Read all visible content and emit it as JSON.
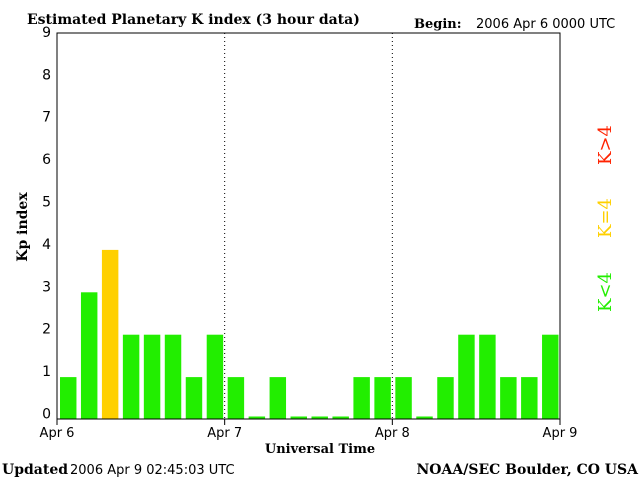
{
  "header": {
    "title": "Estimated Planetary K index (3 hour data)",
    "begin_label": "Begin:",
    "begin_value": "2006 Apr 6 0000 UTC"
  },
  "footer": {
    "updated_label": "Updated",
    "updated_value": "2006 Apr  9 02:45:03 UTC",
    "source": "NOAA/SEC Boulder, CO USA"
  },
  "legend": {
    "high": "K>4",
    "mid": "K=4",
    "low": "K<4"
  },
  "colors": {
    "low": "#22ee00",
    "mid": "#ffd000",
    "high": "#ff2200"
  },
  "chart_data": {
    "type": "bar",
    "title": "Estimated Planetary K index (3 hour data)",
    "xlabel": "Universal Time",
    "ylabel": "Kp index",
    "ylim": [
      0,
      9
    ],
    "yticks": [
      "0",
      "1",
      "2",
      "3",
      "4",
      "5",
      "6",
      "7",
      "8",
      "9"
    ],
    "xticks": [
      "Apr 6",
      "Apr 7",
      "Apr 8",
      "Apr 9"
    ],
    "interval_hours": 3,
    "values": [
      1,
      3,
      4,
      2,
      2,
      2,
      1,
      2,
      1,
      0,
      1,
      0,
      0,
      0,
      1,
      1,
      1,
      0,
      1,
      2,
      2,
      1,
      1,
      2
    ]
  }
}
